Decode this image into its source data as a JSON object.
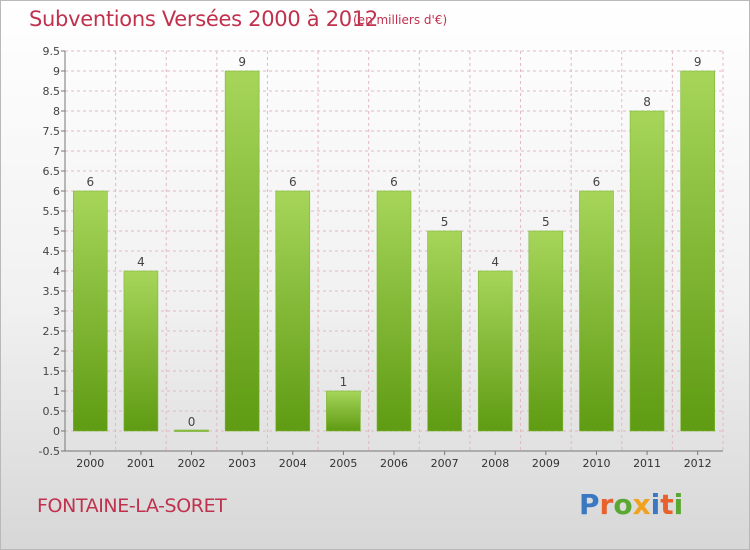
{
  "header": {
    "title": "Subventions Versées 2000 à 2012",
    "subtitle": "(en milliers d'€)"
  },
  "footer": {
    "commune": "FONTAINE-LA-SORET",
    "logo_letters": [
      {
        "char": "P",
        "color": "#3a78c2"
      },
      {
        "char": "r",
        "color": "#e8612c"
      },
      {
        "char": "o",
        "color": "#5aa832"
      },
      {
        "char": "x",
        "color": "#f0a21e"
      },
      {
        "char": "i",
        "color": "#3a78c2"
      },
      {
        "char": "t",
        "color": "#e8612c"
      },
      {
        "char": "i",
        "color": "#5aa832"
      }
    ]
  },
  "colors": {
    "title": "#c0314d",
    "bar_light": "#a6d55a",
    "bar_dark": "#5f9b13",
    "grid": "#e3b8c1",
    "axis": "#777777"
  },
  "chart_data": {
    "type": "bar",
    "title": "Subventions Versées 2000 à 2012",
    "subtitle": "(en milliers d'€)",
    "categories": [
      "2000",
      "2001",
      "2002",
      "2003",
      "2004",
      "2005",
      "2006",
      "2007",
      "2008",
      "2009",
      "2010",
      "2011",
      "2012"
    ],
    "values": [
      6,
      4,
      0,
      9,
      6,
      1,
      6,
      5,
      4,
      5,
      6,
      8,
      9
    ],
    "data_labels": [
      "6",
      "4",
      "0",
      "9",
      "6",
      "1",
      "6",
      "5",
      "4",
      "5",
      "6",
      "8",
      "9"
    ],
    "ylim": [
      -0.5,
      9.5
    ],
    "yticks": [
      "-0.5",
      "0",
      "0.5",
      "1",
      "1.5",
      "2",
      "2.5",
      "3",
      "3.5",
      "4",
      "4.5",
      "5",
      "5.5",
      "6",
      "6.5",
      "7",
      "7.5",
      "8",
      "8.5",
      "9",
      "9.5"
    ],
    "grid": true,
    "xlabel": "",
    "ylabel": ""
  }
}
